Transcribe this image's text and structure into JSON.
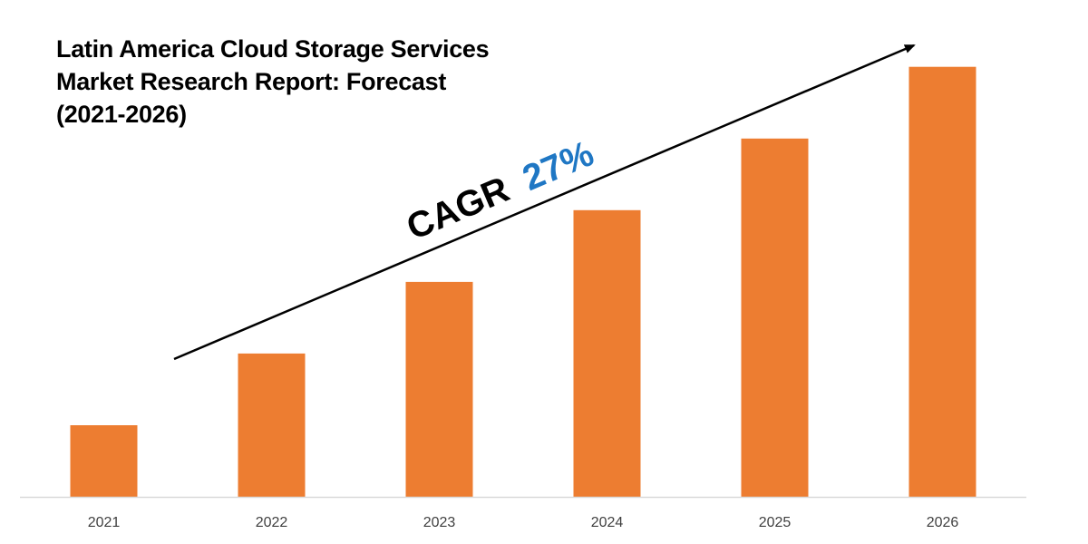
{
  "title_lines": [
    "Latin America Cloud Storage Services",
    "Market Research Report: Forecast",
    "(2021-2026)"
  ],
  "annotation": {
    "prefix": "CAGR",
    "value": "27%",
    "prefix_color": "#000000",
    "value_color": "#1f77c4"
  },
  "colors": {
    "bar": "#ed7d31",
    "axis": "#d9d9d9",
    "trend_arrow": "#000000"
  },
  "chart_data": {
    "type": "bar",
    "title": "Latin America Cloud Storage Services Market Research Report: Forecast (2021-2026)",
    "categories": [
      "2021",
      "2022",
      "2023",
      "2024",
      "2025",
      "2026"
    ],
    "values": [
      1.0,
      2.0,
      3.0,
      4.0,
      5.0,
      6.0
    ],
    "ylim": [
      0,
      6.3
    ],
    "xlabel": "",
    "ylabel": "",
    "grid": false,
    "legend": "none",
    "y_axis_visible": false,
    "annotations": [
      {
        "text": "CAGR 27%",
        "kind": "trend-arrow"
      }
    ]
  }
}
